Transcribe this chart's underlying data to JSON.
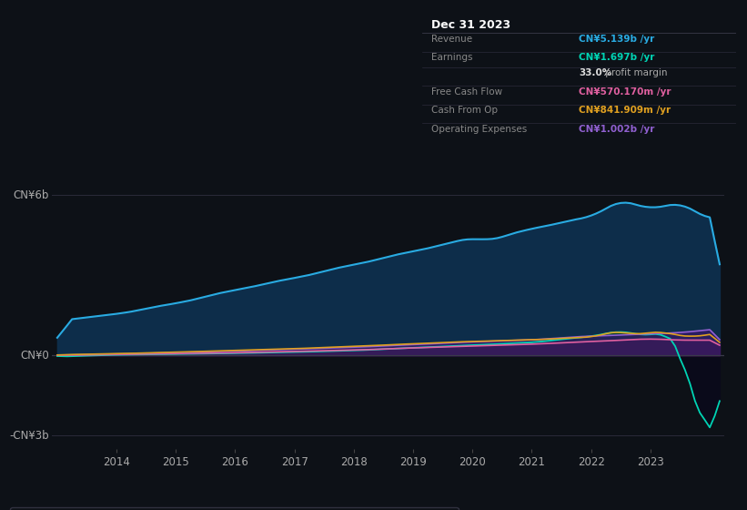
{
  "bg_color": "#0d1117",
  "chart_bg": "#0d1117",
  "title": "Dec 31 2023",
  "y_labels": [
    "CN¥6b",
    "CN¥0",
    "-CN¥3b"
  ],
  "x_labels": [
    "2014",
    "2015",
    "2016",
    "2017",
    "2018",
    "2019",
    "2020",
    "2021",
    "2022",
    "2023"
  ],
  "legend_items": [
    {
      "label": "Revenue",
      "color": "#29abe2"
    },
    {
      "label": "Earnings",
      "color": "#00d4b4"
    },
    {
      "label": "Free Cash Flow",
      "color": "#e060a0"
    },
    {
      "label": "Cash From Op",
      "color": "#e0a020"
    },
    {
      "label": "Operating Expenses",
      "color": "#9060d0"
    }
  ],
  "ylim": [
    -3.5,
    7.2
  ],
  "revenue_color": "#29abe2",
  "revenue_fill": "#0d2d4a",
  "earnings_color": "#00d4b4",
  "earnings_fill": "#003d30",
  "fcf_color": "#e060a0",
  "fcf_fill": "#5a1535",
  "cashfromop_color": "#e0a020",
  "opex_color": "#9060d0",
  "opex_fill": "#35186a"
}
